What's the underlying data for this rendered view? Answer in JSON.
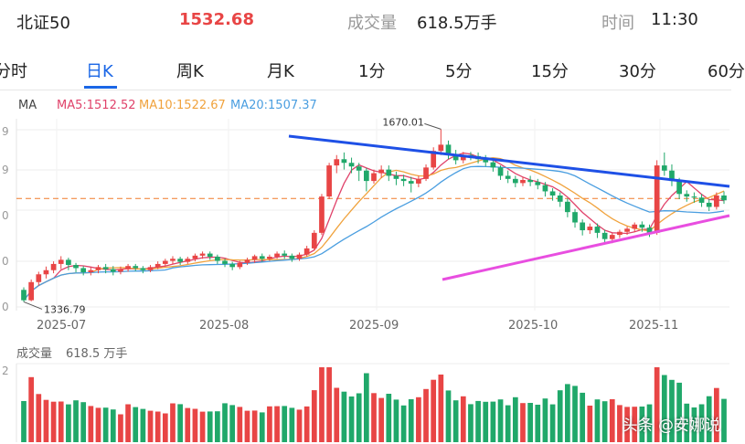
{
  "header": {
    "name": "北证50",
    "price": "1532.68",
    "volume_label": "成交量",
    "volume_value": "618.5万手",
    "time_label": "时间",
    "time_value": "11:30"
  },
  "tabs": [
    {
      "label": "分时"
    },
    {
      "label": "日K",
      "active": true
    },
    {
      "label": "周K"
    },
    {
      "label": "月K"
    },
    {
      "label": "1分"
    },
    {
      "label": "5分"
    },
    {
      "label": "15分"
    },
    {
      "label": "30分"
    },
    {
      "label": "60分"
    }
  ],
  "ma": {
    "label": "MA",
    "ma5": "MA5:1512.52",
    "ma10": "MA10:1522.67",
    "ma20": "MA20:1507.37",
    "colors": {
      "ma5": "#e0426a",
      "ma10": "#f0a23c",
      "ma20": "#4a9ee0"
    }
  },
  "y_tick_fragments": [
    "9",
    "9",
    "0",
    "0",
    "0"
  ],
  "annotations": {
    "high": "1670.01",
    "low": "1336.79"
  },
  "x_ticks": [
    "2025-07",
    "2025-08",
    "2025-09",
    "2025-10",
    "2025-11"
  ],
  "volume": {
    "label": "成交量",
    "value": "618.5 万手",
    "tick_fragment": "2"
  },
  "watermark": "头条 @安娜说",
  "colors": {
    "up": "#e84545",
    "down": "#20a86a",
    "accent": "#1a66e6",
    "price": "#e84545",
    "trend_upper": "#1e50e6",
    "trend_lower": "#e84ee0",
    "ref_line": "#f07a2a"
  },
  "chart_data": {
    "type": "candlestick",
    "axis_extremes": {
      "high": 1670.01,
      "low": 1336.79
    },
    "ohlc_approx": [
      [
        1360,
        1340,
        1336.79,
        1365
      ],
      [
        1340,
        1375,
        1338,
        1380
      ],
      [
        1375,
        1390,
        1368,
        1395
      ],
      [
        1390,
        1398,
        1382,
        1405
      ],
      [
        1398,
        1410,
        1392,
        1415
      ],
      [
        1410,
        1418,
        1400,
        1425
      ],
      [
        1418,
        1408,
        1398,
        1422
      ],
      [
        1408,
        1402,
        1394,
        1412
      ],
      [
        1402,
        1394,
        1388,
        1406
      ],
      [
        1394,
        1398,
        1388,
        1404
      ],
      [
        1398,
        1404,
        1392,
        1408
      ],
      [
        1404,
        1400,
        1392,
        1410
      ],
      [
        1400,
        1395,
        1388,
        1406
      ],
      [
        1395,
        1400,
        1390,
        1405
      ],
      [
        1400,
        1406,
        1395,
        1410
      ],
      [
        1406,
        1402,
        1396,
        1410
      ],
      [
        1402,
        1398,
        1392,
        1406
      ],
      [
        1398,
        1404,
        1394,
        1408
      ],
      [
        1404,
        1410,
        1400,
        1415
      ],
      [
        1410,
        1416,
        1405,
        1420
      ],
      [
        1416,
        1420,
        1410,
        1425
      ],
      [
        1420,
        1414,
        1408,
        1424
      ],
      [
        1414,
        1420,
        1410,
        1424
      ],
      [
        1420,
        1426,
        1415,
        1430
      ],
      [
        1426,
        1430,
        1420,
        1434
      ],
      [
        1430,
        1424,
        1418,
        1434
      ],
      [
        1424,
        1416,
        1410,
        1428
      ],
      [
        1416,
        1410,
        1404,
        1420
      ],
      [
        1410,
        1404,
        1398,
        1414
      ],
      [
        1404,
        1412,
        1400,
        1416
      ],
      [
        1412,
        1418,
        1408,
        1422
      ],
      [
        1418,
        1425,
        1412,
        1428
      ],
      [
        1425,
        1420,
        1414,
        1430
      ],
      [
        1420,
        1424,
        1416,
        1428
      ],
      [
        1424,
        1430,
        1420,
        1434
      ],
      [
        1430,
        1426,
        1420,
        1436
      ],
      [
        1426,
        1420,
        1414,
        1430
      ],
      [
        1420,
        1428,
        1416,
        1432
      ],
      [
        1428,
        1440,
        1424,
        1445
      ],
      [
        1440,
        1470,
        1436,
        1475
      ],
      [
        1470,
        1540,
        1466,
        1545
      ],
      [
        1540,
        1600,
        1535,
        1605
      ],
      [
        1600,
        1612,
        1585,
        1620
      ],
      [
        1612,
        1605,
        1592,
        1625
      ],
      [
        1605,
        1598,
        1585,
        1615
      ],
      [
        1598,
        1590,
        1570,
        1605
      ],
      [
        1590,
        1570,
        1550,
        1595
      ],
      [
        1570,
        1585,
        1565,
        1592
      ],
      [
        1585,
        1592,
        1576,
        1600
      ],
      [
        1592,
        1580,
        1570,
        1600
      ],
      [
        1580,
        1574,
        1562,
        1588
      ],
      [
        1574,
        1570,
        1560,
        1582
      ],
      [
        1570,
        1565,
        1548,
        1578
      ],
      [
        1565,
        1574,
        1558,
        1580
      ],
      [
        1574,
        1596,
        1570,
        1602
      ],
      [
        1596,
        1628,
        1592,
        1635
      ],
      [
        1628,
        1640,
        1620,
        1670.01
      ],
      [
        1640,
        1622,
        1612,
        1648
      ],
      [
        1622,
        1610,
        1602,
        1630
      ],
      [
        1610,
        1620,
        1604,
        1626
      ],
      [
        1620,
        1618,
        1610,
        1626
      ],
      [
        1618,
        1612,
        1604,
        1625
      ],
      [
        1612,
        1606,
        1598,
        1620
      ],
      [
        1606,
        1596,
        1588,
        1612
      ],
      [
        1596,
        1580,
        1572,
        1600
      ],
      [
        1580,
        1574,
        1566,
        1590
      ],
      [
        1574,
        1566,
        1558,
        1580
      ],
      [
        1566,
        1572,
        1560,
        1578
      ],
      [
        1572,
        1568,
        1560,
        1580
      ],
      [
        1568,
        1562,
        1554,
        1574
      ],
      [
        1562,
        1550,
        1540,
        1568
      ],
      [
        1550,
        1542,
        1532,
        1556
      ],
      [
        1542,
        1530,
        1520,
        1548
      ],
      [
        1530,
        1510,
        1500,
        1536
      ],
      [
        1510,
        1490,
        1480,
        1516
      ],
      [
        1490,
        1475,
        1465,
        1496
      ],
      [
        1475,
        1482,
        1468,
        1488
      ],
      [
        1482,
        1470,
        1460,
        1488
      ],
      [
        1470,
        1458,
        1448,
        1476
      ],
      [
        1458,
        1466,
        1450,
        1470
      ],
      [
        1466,
        1472,
        1460,
        1476
      ],
      [
        1472,
        1478,
        1466,
        1482
      ],
      [
        1478,
        1486,
        1472,
        1490
      ],
      [
        1486,
        1480,
        1472,
        1492
      ],
      [
        1480,
        1470,
        1462,
        1486
      ],
      [
        1470,
        1600,
        1466,
        1610
      ],
      [
        1600,
        1590,
        1580,
        1625
      ],
      [
        1590,
        1570,
        1560,
        1602
      ],
      [
        1570,
        1545,
        1535,
        1576
      ],
      [
        1545,
        1540,
        1530,
        1552
      ],
      [
        1540,
        1538,
        1528,
        1548
      ],
      [
        1538,
        1528,
        1520,
        1545
      ],
      [
        1528,
        1520,
        1512,
        1535
      ],
      [
        1520,
        1542,
        1515,
        1548
      ],
      [
        1542,
        1532.68,
        1526,
        1550
      ]
    ]
  }
}
